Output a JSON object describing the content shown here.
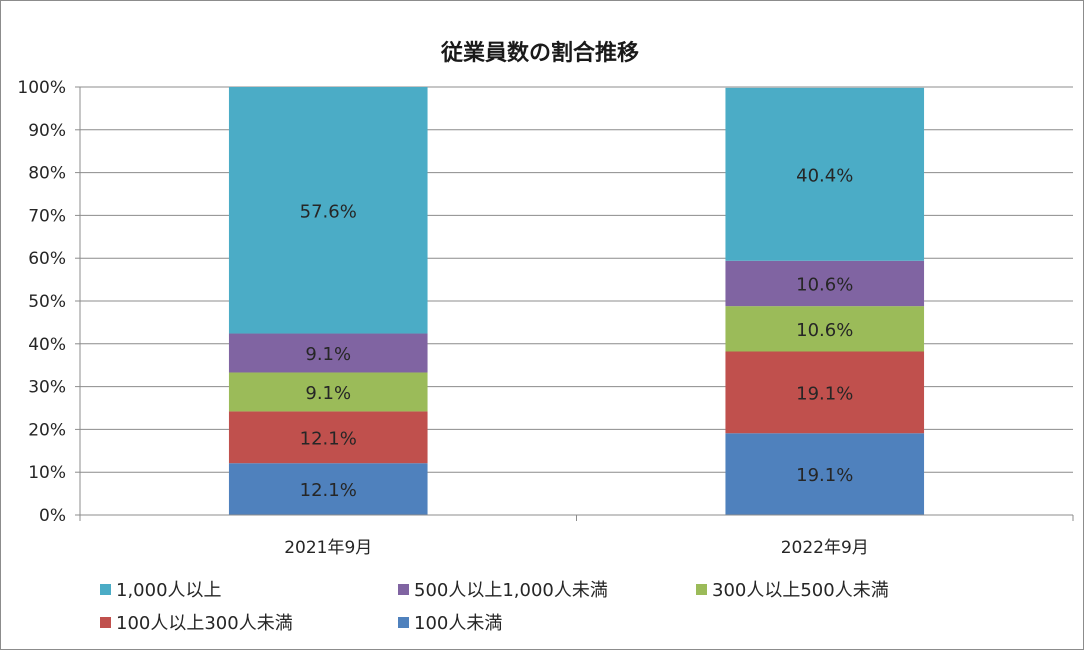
{
  "chart_data": {
    "type": "bar",
    "stacked": true,
    "percent_stacked": true,
    "title": "従業員数の割合推移",
    "categories": [
      "2021年9月",
      "2022年9月"
    ],
    "series": [
      {
        "name": "100人未満",
        "color": "#4f81bd",
        "values": [
          12.1,
          19.1
        ],
        "labels": [
          "12.1%",
          "19.1%"
        ]
      },
      {
        "name": "100人以上300人未満",
        "color": "#c0504d",
        "values": [
          12.1,
          19.1
        ],
        "labels": [
          "12.1%",
          "19.1%"
        ]
      },
      {
        "name": "300人以上500人未満",
        "color": "#9bbb59",
        "values": [
          9.1,
          10.6
        ],
        "labels": [
          "9.1%",
          "10.6%"
        ]
      },
      {
        "name": "500人以上1,000人未満",
        "color": "#8064a2",
        "values": [
          9.1,
          10.6
        ],
        "labels": [
          "9.1%",
          "10.6%"
        ]
      },
      {
        "name": "1,000人以上",
        "color": "#4bacc6",
        "values": [
          57.6,
          40.4
        ],
        "labels": [
          "57.6%",
          "40.4%"
        ]
      }
    ],
    "ylim": [
      0,
      100
    ],
    "yticks": [
      "0%",
      "10%",
      "20%",
      "30%",
      "40%",
      "50%",
      "60%",
      "70%",
      "80%",
      "90%",
      "100%"
    ],
    "grid": true,
    "legend_position": "bottom",
    "legend_order": [
      "1,000人以上",
      "500人以上1,000人未満",
      "300人以上500人未満",
      "100人以上300人未満",
      "100人未満"
    ]
  }
}
